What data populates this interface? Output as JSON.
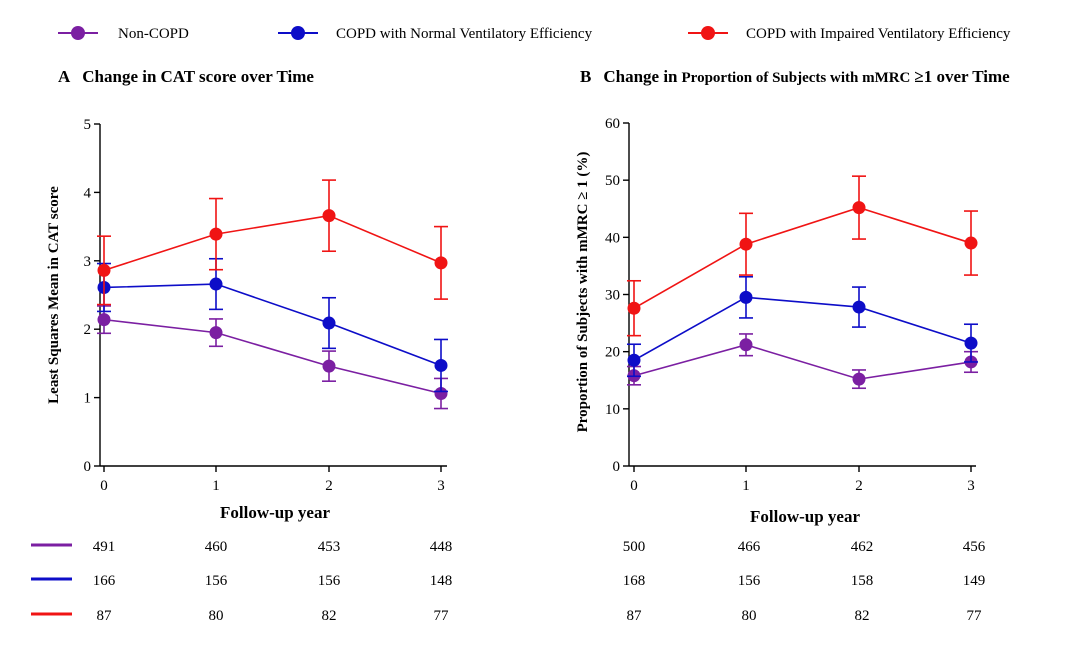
{
  "legend": [
    {
      "key": "non",
      "label": "Non-COPD",
      "color": "#7B1FA2"
    },
    {
      "key": "normal",
      "label": "COPD with Normal Ventilatory Efficiency",
      "color": "#0D0DC8"
    },
    {
      "key": "impaired",
      "label": "COPD with Impaired Ventilatory Efficiency",
      "color": "#F01414"
    }
  ],
  "chart_data": [
    {
      "type": "line",
      "panel_letter": "A",
      "title": "Change in CAT score over Time",
      "title_prefix": "Change in",
      "title_small": "",
      "title_suffix": "CAT score over Time",
      "xlabel": "Follow-up year",
      "ylabel": "Least Squares Mean in CAT score",
      "x": [
        0,
        1,
        2,
        3
      ],
      "x_tick_labels": [
        "0",
        "1",
        "2",
        "3"
      ],
      "ylim": [
        0,
        5
      ],
      "y_ticks": [
        0,
        1,
        2,
        3,
        4,
        5
      ],
      "y_tick_labels": [
        "0",
        "1",
        "2",
        "3",
        "4",
        "5"
      ],
      "series": [
        {
          "key": "non",
          "name": "Non-COPD",
          "values": [
            2.14,
            1.95,
            1.46,
            1.06
          ],
          "error": [
            0.2,
            0.2,
            0.22,
            0.22
          ],
          "counts": [
            "491",
            "460",
            "453",
            "448"
          ]
        },
        {
          "key": "normal",
          "name": "COPD with Normal Ventilatory Efficiency",
          "values": [
            2.61,
            2.66,
            2.09,
            1.47
          ],
          "error": [
            0.35,
            0.37,
            0.37,
            0.38
          ],
          "counts": [
            "166",
            "156",
            "156",
            "148"
          ]
        },
        {
          "key": "impaired",
          "name": "COPD with Impaired Ventilatory Efficiency",
          "values": [
            2.86,
            3.39,
            3.66,
            2.97
          ],
          "error": [
            0.5,
            0.52,
            0.52,
            0.53
          ],
          "counts": [
            "87",
            "80",
            "82",
            "77"
          ]
        }
      ]
    },
    {
      "type": "line",
      "panel_letter": "B",
      "title": "Change in Proportion of Subjects with mMRC ≥1 over Time",
      "title_prefix": "Change in",
      "title_small": "Proportion of Subjects with mMRC",
      "title_suffix": "≥1 over Time",
      "xlabel": "Follow-up year",
      "ylabel": "Proportion of Subjects with mMRC ≥ 1 (%)",
      "x": [
        0,
        1,
        2,
        3
      ],
      "x_tick_labels": [
        "0",
        "1",
        "2",
        "3"
      ],
      "ylim": [
        0,
        60
      ],
      "y_ticks": [
        0,
        10,
        20,
        30,
        40,
        50,
        60
      ],
      "y_tick_labels": [
        "0",
        "10",
        "20",
        "30",
        "40",
        "50",
        "60"
      ],
      "series": [
        {
          "key": "non",
          "name": "Non-COPD",
          "values": [
            15.8,
            21.2,
            15.2,
            18.2
          ],
          "error": [
            1.6,
            1.9,
            1.6,
            1.8
          ],
          "counts": [
            "500",
            "466",
            "462",
            "456"
          ]
        },
        {
          "key": "normal",
          "name": "COPD with Normal Ventilatory Efficiency",
          "values": [
            18.5,
            29.5,
            27.8,
            21.5
          ],
          "error": [
            2.8,
            3.6,
            3.5,
            3.3
          ],
          "counts": [
            "168",
            "156",
            "158",
            "149"
          ]
        },
        {
          "key": "impaired",
          "name": "COPD with Impaired Ventilatory Efficiency",
          "values": [
            27.6,
            38.8,
            45.2,
            39.0
          ],
          "error": [
            4.8,
            5.4,
            5.5,
            5.6
          ],
          "counts": [
            "87",
            "80",
            "82",
            "77"
          ]
        }
      ]
    }
  ]
}
